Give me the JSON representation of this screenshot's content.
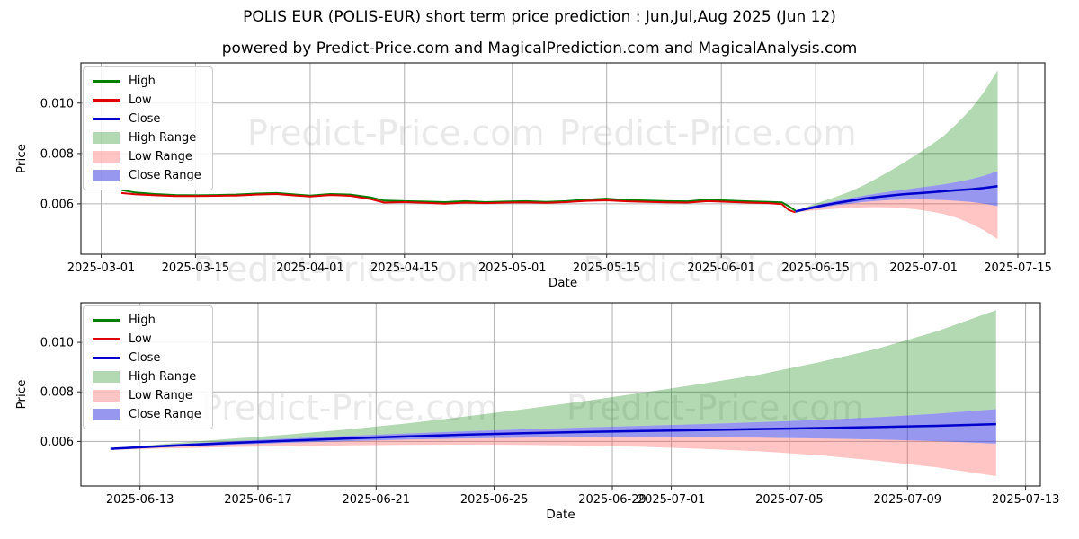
{
  "title": "POLIS EUR (POLIS-EUR) short term price prediction : Jun,Jul,Aug 2025 (Jun 12)",
  "subtitle": "powered by Predict-Price.com and MagicalPrediction.com and MagicalAnalysis.com",
  "watermark": {
    "text": "Predict-Price.com",
    "color": "#e9e9e9"
  },
  "colors": {
    "high": "#008000",
    "low": "#e00000",
    "close": "#0000cc",
    "high_range": "rgba(0,128,0,0.30)",
    "low_range": "rgba(255,70,70,0.32)",
    "close_range": "rgba(55,55,225,0.52)",
    "grid": "#b0b0b0",
    "axis": "#2b2b2b"
  },
  "legend": {
    "items": [
      {
        "label": "High",
        "type": "line",
        "color_key": "high"
      },
      {
        "label": "Low",
        "type": "line",
        "color_key": "low"
      },
      {
        "label": "Close",
        "type": "line",
        "color_key": "close"
      },
      {
        "label": "High Range",
        "type": "fill",
        "color_key": "high_range"
      },
      {
        "label": "Low Range",
        "type": "fill",
        "color_key": "low_range"
      },
      {
        "label": "Close Range",
        "type": "fill",
        "color_key": "close_range"
      }
    ]
  },
  "chart_data": {
    "type": "line",
    "title": "POLIS EUR (POLIS-EUR) short term price prediction : Jun,Jul,Aug 2025 (Jun 12)",
    "historical": {
      "dates": [
        "2025-03-04",
        "2025-03-06",
        "2025-03-09",
        "2025-03-12",
        "2025-03-15",
        "2025-03-18",
        "2025-03-21",
        "2025-03-24",
        "2025-03-27",
        "2025-03-30",
        "2025-04-01",
        "2025-04-04",
        "2025-04-07",
        "2025-04-10",
        "2025-04-12",
        "2025-04-15",
        "2025-04-18",
        "2025-04-21",
        "2025-04-24",
        "2025-04-27",
        "2025-04-30",
        "2025-05-03",
        "2025-05-06",
        "2025-05-09",
        "2025-05-12",
        "2025-05-15",
        "2025-05-18",
        "2025-05-21",
        "2025-05-24",
        "2025-05-27",
        "2025-05-30",
        "2025-06-02",
        "2025-06-05",
        "2025-06-08",
        "2025-06-10",
        "2025-06-11",
        "2025-06-12"
      ],
      "high": [
        0.00655,
        0.00645,
        0.00639,
        0.00635,
        0.00634,
        0.00635,
        0.00637,
        0.00641,
        0.00643,
        0.00637,
        0.00633,
        0.00639,
        0.00637,
        0.00626,
        0.00613,
        0.00611,
        0.00609,
        0.00607,
        0.00611,
        0.00607,
        0.00609,
        0.00611,
        0.00608,
        0.00611,
        0.00617,
        0.00621,
        0.00615,
        0.00613,
        0.00611,
        0.0061,
        0.00617,
        0.00613,
        0.0061,
        0.00608,
        0.00606,
        0.00591,
        0.00573
      ],
      "low": [
        0.00643,
        0.00638,
        0.00634,
        0.00631,
        0.00631,
        0.00632,
        0.00633,
        0.00637,
        0.00639,
        0.00633,
        0.00629,
        0.00635,
        0.00632,
        0.00619,
        0.00605,
        0.00607,
        0.00604,
        0.00601,
        0.00605,
        0.00603,
        0.00605,
        0.00606,
        0.00604,
        0.00607,
        0.00612,
        0.00614,
        0.0061,
        0.00608,
        0.00606,
        0.00605,
        0.00611,
        0.00608,
        0.00605,
        0.00603,
        0.00599,
        0.00576,
        0.00566
      ]
    },
    "prediction": {
      "dates": [
        "2025-06-12",
        "2025-06-14",
        "2025-06-16",
        "2025-06-18",
        "2025-06-20",
        "2025-06-22",
        "2025-06-24",
        "2025-06-26",
        "2025-06-28",
        "2025-06-30",
        "2025-07-02",
        "2025-07-04",
        "2025-07-06",
        "2025-07-08",
        "2025-07-10",
        "2025-07-12"
      ],
      "close": [
        0.0057,
        0.00582,
        0.00593,
        0.00603,
        0.00612,
        0.0062,
        0.00627,
        0.00633,
        0.00638,
        0.00642,
        0.00646,
        0.0065,
        0.00654,
        0.00658,
        0.00663,
        0.0067
      ],
      "close_range_upper": [
        0.0057,
        0.00588,
        0.006,
        0.00612,
        0.00622,
        0.00632,
        0.00641,
        0.00649,
        0.00656,
        0.00663,
        0.0067,
        0.00678,
        0.00687,
        0.00698,
        0.00712,
        0.0073
      ],
      "close_range_lower": [
        0.0057,
        0.00577,
        0.00586,
        0.00594,
        0.00601,
        0.00607,
        0.00612,
        0.00615,
        0.00617,
        0.00618,
        0.00617,
        0.00615,
        0.00612,
        0.00608,
        0.00601,
        0.00591
      ],
      "high_range_upper": [
        0.0057,
        0.00592,
        0.0061,
        0.00628,
        0.00648,
        0.00672,
        0.007,
        0.0073,
        0.00762,
        0.00796,
        0.00832,
        0.0087,
        0.0092,
        0.00975,
        0.01045,
        0.0113
      ],
      "low_range_lower": [
        0.00566,
        0.00572,
        0.00577,
        0.00581,
        0.00584,
        0.00586,
        0.00587,
        0.00586,
        0.00583,
        0.00578,
        0.0057,
        0.0056,
        0.00544,
        0.00522,
        0.00495,
        0.0046
      ]
    },
    "charts": [
      {
        "id": "top",
        "show_historical": true,
        "xlabel": "Date",
        "ylabel": "Price",
        "x_ticks": [
          "2025-03-01",
          "2025-03-15",
          "2025-04-01",
          "2025-04-15",
          "2025-05-01",
          "2025-05-15",
          "2025-06-01",
          "2025-06-15",
          "2025-07-01",
          "2025-07-15"
        ],
        "y_ticks": [
          0.006,
          0.008,
          0.01
        ],
        "y_tick_labels": [
          "0.006",
          "0.008",
          "0.010"
        ],
        "xlim": [
          "2025-02-26",
          "2025-07-19"
        ],
        "ylim": [
          0.004,
          0.0116
        ],
        "grid": true,
        "legend_position": "upper left"
      },
      {
        "id": "bottom",
        "show_historical": false,
        "xlabel": "Date",
        "ylabel": "Price",
        "x_ticks": [
          "2025-06-13",
          "2025-06-17",
          "2025-06-21",
          "2025-06-25",
          "2025-06-29",
          "2025-07-01",
          "2025-07-05",
          "2025-07-09",
          "2025-07-13"
        ],
        "y_ticks": [
          0.006,
          0.008,
          0.01
        ],
        "y_tick_labels": [
          "0.006",
          "0.008",
          "0.010"
        ],
        "xlim": [
          "2025-06-11",
          "2025-07-13+0.5"
        ],
        "ylim": [
          0.0042,
          0.0116
        ],
        "grid": true,
        "legend_position": "upper left"
      }
    ]
  }
}
